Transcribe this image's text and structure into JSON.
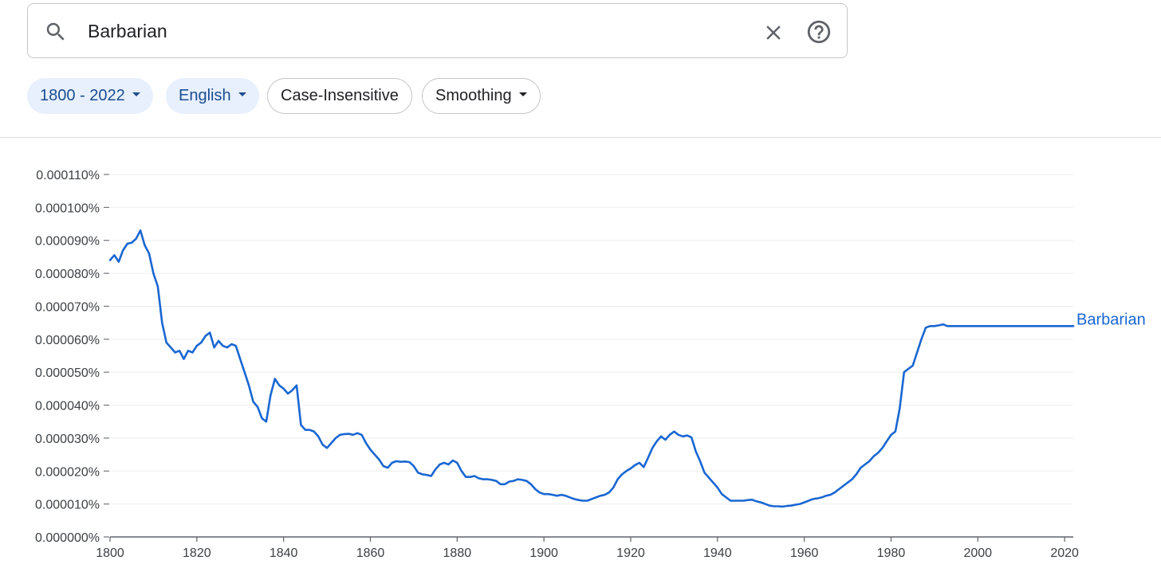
{
  "search": {
    "query": "Barbarian",
    "icons": {
      "search": "search-icon",
      "clear": "close-icon",
      "help": "help-circle-icon"
    }
  },
  "chips": [
    {
      "label": "1800 - 2022",
      "style": "filled",
      "has_dropdown": true
    },
    {
      "label": "English",
      "style": "filled",
      "has_dropdown": true
    },
    {
      "label": "Case-Insensitive",
      "style": "outline",
      "has_dropdown": false
    },
    {
      "label": "Smoothing",
      "style": "outline",
      "has_dropdown": true
    }
  ],
  "colors": {
    "accent": "#1967d2",
    "chip_fill": "#e8f0fe",
    "chip_text": "#1a4d8f",
    "grid": "#eeeeee"
  },
  "chart_data": {
    "type": "line",
    "title": "",
    "xlabel": "",
    "ylabel": "",
    "xlim": [
      1800,
      2022
    ],
    "ylim": [
      0,
      0.00011
    ],
    "grid": true,
    "x_ticks": [
      "1800",
      "1820",
      "1840",
      "1860",
      "1880",
      "1900",
      "1920",
      "1940",
      "1960",
      "1980",
      "2000",
      "2020"
    ],
    "y_ticks": [
      "0.000000%",
      "0.000010%",
      "0.000020%",
      "0.000030%",
      "0.000040%",
      "0.000050%",
      "0.000060%",
      "0.000070%",
      "0.000080%",
      "0.000090%",
      "0.000100%",
      "0.000110%"
    ],
    "series": [
      {
        "name": "Barbarian",
        "color": "#1967d2",
        "points": [
          [
            1800,
            8.4e-05
          ],
          [
            1801,
            8.55e-05
          ],
          [
            1802,
            8.35e-05
          ],
          [
            1803,
            8.7e-05
          ],
          [
            1804,
            8.9e-05
          ],
          [
            1805,
            8.93e-05
          ],
          [
            1806,
            9.05e-05
          ],
          [
            1807,
            9.3e-05
          ],
          [
            1808,
            8.85e-05
          ],
          [
            1809,
            8.6e-05
          ],
          [
            1810,
            8e-05
          ],
          [
            1811,
            7.6e-05
          ],
          [
            1812,
            6.5e-05
          ],
          [
            1813,
            5.9e-05
          ],
          [
            1814,
            5.75e-05
          ],
          [
            1815,
            5.6e-05
          ],
          [
            1816,
            5.65e-05
          ],
          [
            1817,
            5.4e-05
          ],
          [
            1818,
            5.65e-05
          ],
          [
            1819,
            5.6e-05
          ],
          [
            1820,
            5.8e-05
          ],
          [
            1821,
            5.9e-05
          ],
          [
            1822,
            6.1e-05
          ],
          [
            1823,
            6.2e-05
          ],
          [
            1824,
            5.75e-05
          ],
          [
            1825,
            5.95e-05
          ],
          [
            1826,
            5.8e-05
          ],
          [
            1827,
            5.75e-05
          ],
          [
            1828,
            5.85e-05
          ],
          [
            1829,
            5.8e-05
          ],
          [
            1830,
            5.4e-05
          ],
          [
            1831,
            5e-05
          ],
          [
            1832,
            4.6e-05
          ],
          [
            1833,
            4.1e-05
          ],
          [
            1834,
            3.95e-05
          ],
          [
            1835,
            3.6e-05
          ],
          [
            1836,
            3.5e-05
          ],
          [
            1837,
            4.3e-05
          ],
          [
            1838,
            4.8e-05
          ],
          [
            1839,
            4.6e-05
          ],
          [
            1840,
            4.5e-05
          ],
          [
            1841,
            4.35e-05
          ],
          [
            1842,
            4.45e-05
          ],
          [
            1843,
            4.6e-05
          ],
          [
            1844,
            3.4e-05
          ],
          [
            1845,
            3.25e-05
          ],
          [
            1846,
            3.25e-05
          ],
          [
            1847,
            3.2e-05
          ],
          [
            1848,
            3.05e-05
          ],
          [
            1849,
            2.8e-05
          ],
          [
            1850,
            2.7e-05
          ],
          [
            1851,
            2.85e-05
          ],
          [
            1852,
            3e-05
          ],
          [
            1853,
            3.1e-05
          ],
          [
            1854,
            3.12e-05
          ],
          [
            1855,
            3.13e-05
          ],
          [
            1856,
            3.1e-05
          ],
          [
            1857,
            3.15e-05
          ],
          [
            1858,
            3.1e-05
          ],
          [
            1859,
            2.85e-05
          ],
          [
            1860,
            2.65e-05
          ],
          [
            1861,
            2.5e-05
          ],
          [
            1862,
            2.35e-05
          ],
          [
            1863,
            2.15e-05
          ],
          [
            1864,
            2.1e-05
          ],
          [
            1865,
            2.25e-05
          ],
          [
            1866,
            2.3e-05
          ],
          [
            1867,
            2.28e-05
          ],
          [
            1868,
            2.29e-05
          ],
          [
            1869,
            2.27e-05
          ],
          [
            1870,
            2.15e-05
          ],
          [
            1871,
            1.95e-05
          ],
          [
            1872,
            1.9e-05
          ],
          [
            1873,
            1.88e-05
          ],
          [
            1874,
            1.85e-05
          ],
          [
            1875,
            2.05e-05
          ],
          [
            1876,
            2.2e-05
          ],
          [
            1877,
            2.25e-05
          ],
          [
            1878,
            2.2e-05
          ],
          [
            1879,
            2.32e-05
          ],
          [
            1880,
            2.25e-05
          ],
          [
            1881,
            2e-05
          ],
          [
            1882,
            1.82e-05
          ],
          [
            1883,
            1.82e-05
          ],
          [
            1884,
            1.85e-05
          ],
          [
            1885,
            1.78e-05
          ],
          [
            1886,
            1.75e-05
          ],
          [
            1887,
            1.75e-05
          ],
          [
            1888,
            1.73e-05
          ],
          [
            1889,
            1.7e-05
          ],
          [
            1890,
            1.6e-05
          ],
          [
            1891,
            1.6e-05
          ],
          [
            1892,
            1.68e-05
          ],
          [
            1893,
            1.7e-05
          ],
          [
            1894,
            1.75e-05
          ],
          [
            1895,
            1.73e-05
          ],
          [
            1896,
            1.7e-05
          ],
          [
            1897,
            1.6e-05
          ],
          [
            1898,
            1.45e-05
          ],
          [
            1899,
            1.35e-05
          ],
          [
            1900,
            1.3e-05
          ],
          [
            1901,
            1.3e-05
          ],
          [
            1902,
            1.28e-05
          ],
          [
            1903,
            1.25e-05
          ],
          [
            1904,
            1.28e-05
          ],
          [
            1905,
            1.25e-05
          ],
          [
            1906,
            1.2e-05
          ],
          [
            1907,
            1.15e-05
          ],
          [
            1908,
            1.12e-05
          ],
          [
            1909,
            1.1e-05
          ],
          [
            1910,
            1.1e-05
          ],
          [
            1911,
            1.15e-05
          ],
          [
            1912,
            1.2e-05
          ],
          [
            1913,
            1.25e-05
          ],
          [
            1914,
            1.28e-05
          ],
          [
            1915,
            1.35e-05
          ],
          [
            1916,
            1.5e-05
          ],
          [
            1917,
            1.75e-05
          ],
          [
            1918,
            1.9e-05
          ],
          [
            1919,
            2e-05
          ],
          [
            1920,
            2.08e-05
          ],
          [
            1921,
            2.18e-05
          ],
          [
            1922,
            2.25e-05
          ],
          [
            1923,
            2.12e-05
          ],
          [
            1924,
            2.4e-05
          ],
          [
            1925,
            2.7e-05
          ],
          [
            1926,
            2.9e-05
          ],
          [
            1927,
            3.05e-05
          ],
          [
            1928,
            2.95e-05
          ],
          [
            1929,
            3.1e-05
          ],
          [
            1930,
            3.2e-05
          ],
          [
            1931,
            3.1e-05
          ],
          [
            1932,
            3.05e-05
          ],
          [
            1933,
            3.08e-05
          ],
          [
            1934,
            3.02e-05
          ],
          [
            1935,
            2.6e-05
          ],
          [
            1936,
            2.3e-05
          ],
          [
            1937,
            1.95e-05
          ],
          [
            1938,
            1.8e-05
          ],
          [
            1939,
            1.65e-05
          ],
          [
            1940,
            1.5e-05
          ],
          [
            1941,
            1.3e-05
          ],
          [
            1942,
            1.2e-05
          ],
          [
            1943,
            1.1e-05
          ],
          [
            1944,
            1.1e-05
          ],
          [
            1945,
            1.1e-05
          ],
          [
            1946,
            1.1e-05
          ],
          [
            1947,
            1.12e-05
          ],
          [
            1948,
            1.13e-05
          ],
          [
            1949,
            1.08e-05
          ],
          [
            1950,
            1.05e-05
          ],
          [
            1951,
            1e-05
          ],
          [
            1952,
            9.5e-06
          ],
          [
            1953,
            9.3e-06
          ],
          [
            1954,
            9.3e-06
          ],
          [
            1955,
            9.2e-06
          ],
          [
            1956,
            9.4e-06
          ],
          [
            1957,
            9.5e-06
          ],
          [
            1958,
            9.8e-06
          ],
          [
            1959,
            1e-05
          ],
          [
            1960,
            1.05e-05
          ],
          [
            1961,
            1.1e-05
          ],
          [
            1962,
            1.15e-05
          ],
          [
            1963,
            1.17e-05
          ],
          [
            1964,
            1.2e-05
          ],
          [
            1965,
            1.25e-05
          ],
          [
            1966,
            1.28e-05
          ],
          [
            1967,
            1.35e-05
          ],
          [
            1968,
            1.45e-05
          ],
          [
            1969,
            1.55e-05
          ],
          [
            1970,
            1.65e-05
          ],
          [
            1971,
            1.75e-05
          ],
          [
            1972,
            1.9e-05
          ],
          [
            1973,
            2.1e-05
          ],
          [
            1974,
            2.2e-05
          ],
          [
            1975,
            2.3e-05
          ],
          [
            1976,
            2.45e-05
          ],
          [
            1977,
            2.55e-05
          ],
          [
            1978,
            2.7e-05
          ],
          [
            1979,
            2.9e-05
          ],
          [
            1980,
            3.1e-05
          ],
          [
            1981,
            3.2e-05
          ],
          [
            1982,
            3.9e-05
          ],
          [
            1983,
            5e-05
          ],
          [
            1984,
            5.1e-05
          ],
          [
            1985,
            5.2e-05
          ],
          [
            1986,
            5.6e-05
          ],
          [
            1987,
            6e-05
          ],
          [
            1988,
            6.35e-05
          ],
          [
            1989,
            6.4e-05
          ],
          [
            1990,
            6.4e-05
          ],
          [
            1991,
            6.42e-05
          ],
          [
            1992,
            6.45e-05
          ],
          [
            1993,
            6.4e-05
          ],
          [
            1994,
            6.4e-05
          ],
          [
            1995,
            6.4e-05
          ],
          [
            1996,
            6.4e-05
          ],
          [
            1997,
            6.4e-05
          ],
          [
            1998,
            6.4e-05
          ],
          [
            1999,
            6.4e-05
          ],
          [
            2000,
            6.4e-05
          ],
          [
            2001,
            6.4e-05
          ],
          [
            2002,
            6.4e-05
          ],
          [
            2003,
            6.4e-05
          ],
          [
            2004,
            6.4e-05
          ],
          [
            2005,
            6.4e-05
          ],
          [
            2006,
            6.4e-05
          ],
          [
            2007,
            6.4e-05
          ],
          [
            2008,
            6.4e-05
          ],
          [
            2009,
            6.4e-05
          ],
          [
            2010,
            6.4e-05
          ],
          [
            2011,
            6.4e-05
          ],
          [
            2012,
            6.4e-05
          ],
          [
            2013,
            6.4e-05
          ],
          [
            2014,
            6.4e-05
          ],
          [
            2015,
            6.4e-05
          ],
          [
            2016,
            6.4e-05
          ],
          [
            2017,
            6.4e-05
          ],
          [
            2018,
            6.4e-05
          ],
          [
            2019,
            6.4e-05
          ],
          [
            2020,
            6.4e-05
          ],
          [
            2021,
            6.4e-05
          ],
          [
            2022,
            6.4e-05
          ]
        ]
      }
    ]
  }
}
